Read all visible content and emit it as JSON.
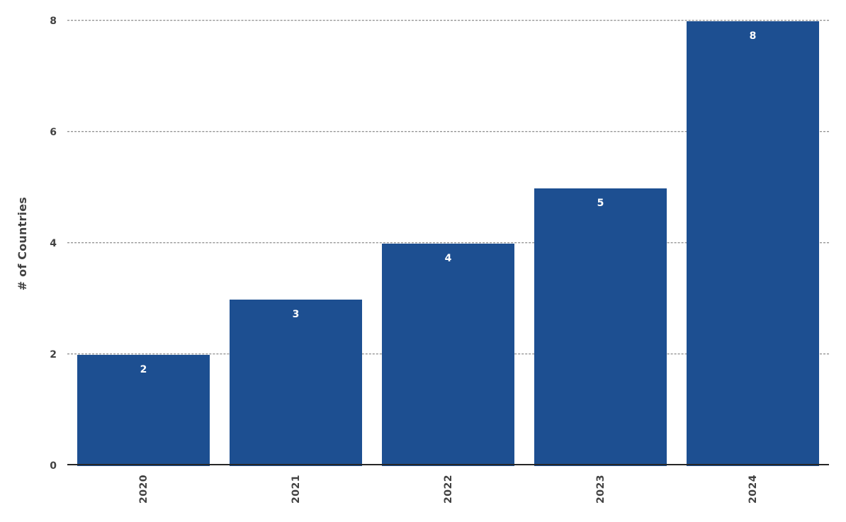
{
  "figure": {
    "background": "#ffffff"
  },
  "chart_data": {
    "type": "bar",
    "title": "",
    "xlabel": "",
    "ylabel": "# of Countries",
    "categories": [
      "2020",
      "2021",
      "2022",
      "2023",
      "2024"
    ],
    "values": [
      2,
      3,
      4,
      5,
      8
    ],
    "ylim": [
      0,
      8
    ],
    "yticks": [
      0,
      2,
      4,
      6,
      8
    ],
    "grid": "horizontal-dashed",
    "legend": "none",
    "colors": {
      "bar": "#1d4f91",
      "value_label": "#ffffff",
      "tick_label": "#424242",
      "gridline": "#6e6e6e",
      "axis_line": "#262626",
      "background": "#ffffff"
    }
  }
}
